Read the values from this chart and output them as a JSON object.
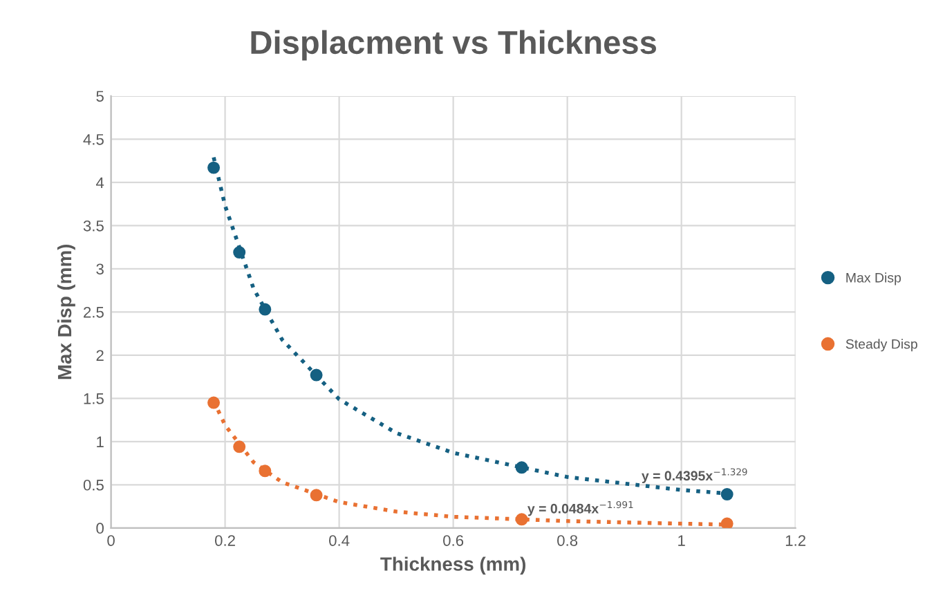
{
  "chart_data": {
    "type": "scatter",
    "title": "Displacment vs Thickness",
    "xlabel": "Thickness (mm)",
    "ylabel": "Max Disp (mm)",
    "xlim": [
      0,
      1.2
    ],
    "xticks": [
      0,
      0.2,
      0.4,
      0.6,
      0.8,
      1,
      1.2
    ],
    "ylim": [
      0,
      5
    ],
    "yticks": [
      0,
      0.5,
      1,
      1.5,
      2,
      2.5,
      3,
      3.5,
      4,
      4.5,
      5
    ],
    "grid": true,
    "legend": "right",
    "series": [
      {
        "name": "Max Disp",
        "marker": "circle",
        "color": "#156082",
        "x": [
          0.18,
          0.225,
          0.27,
          0.36,
          0.72,
          1.08
        ],
        "values": [
          4.17,
          3.19,
          2.53,
          1.77,
          0.7,
          0.39
        ]
      },
      {
        "name": "Steady Disp",
        "marker": "circle",
        "color": "#e97132",
        "x": [
          0.18,
          0.225,
          0.27,
          0.36,
          0.72,
          1.08
        ],
        "values": [
          1.45,
          0.94,
          0.66,
          0.38,
          0.1,
          0.05
        ]
      },
      {
        "type": "line",
        "marker": "none",
        "line_style": "dotted",
        "color": "#156082",
        "x": [
          0.18,
          0.2,
          0.25,
          0.3,
          0.4,
          0.5,
          0.6,
          0.8,
          1.0,
          1.08
        ],
        "values": [
          4.29,
          3.73,
          2.77,
          2.18,
          1.49,
          1.1,
          0.87,
          0.59,
          0.44,
          0.4
        ]
      },
      {
        "type": "line",
        "marker": "none",
        "line_style": "dotted",
        "color": "#e97132",
        "x": [
          0.18,
          0.2,
          0.25,
          0.3,
          0.4,
          0.5,
          0.6,
          0.8,
          1.0,
          1.08
        ],
        "values": [
          1.47,
          1.19,
          0.76,
          0.53,
          0.3,
          0.19,
          0.13,
          0.08,
          0.05,
          0.04
        ]
      }
    ],
    "annotations": [
      {
        "text": "y = 0.4395x$^{−1.329}$",
        "x": 0.93,
        "y": 0.55
      },
      {
        "text": "y = 0.0484x$^{−1.991}$",
        "x": 0.73,
        "y": 0.17
      }
    ]
  }
}
